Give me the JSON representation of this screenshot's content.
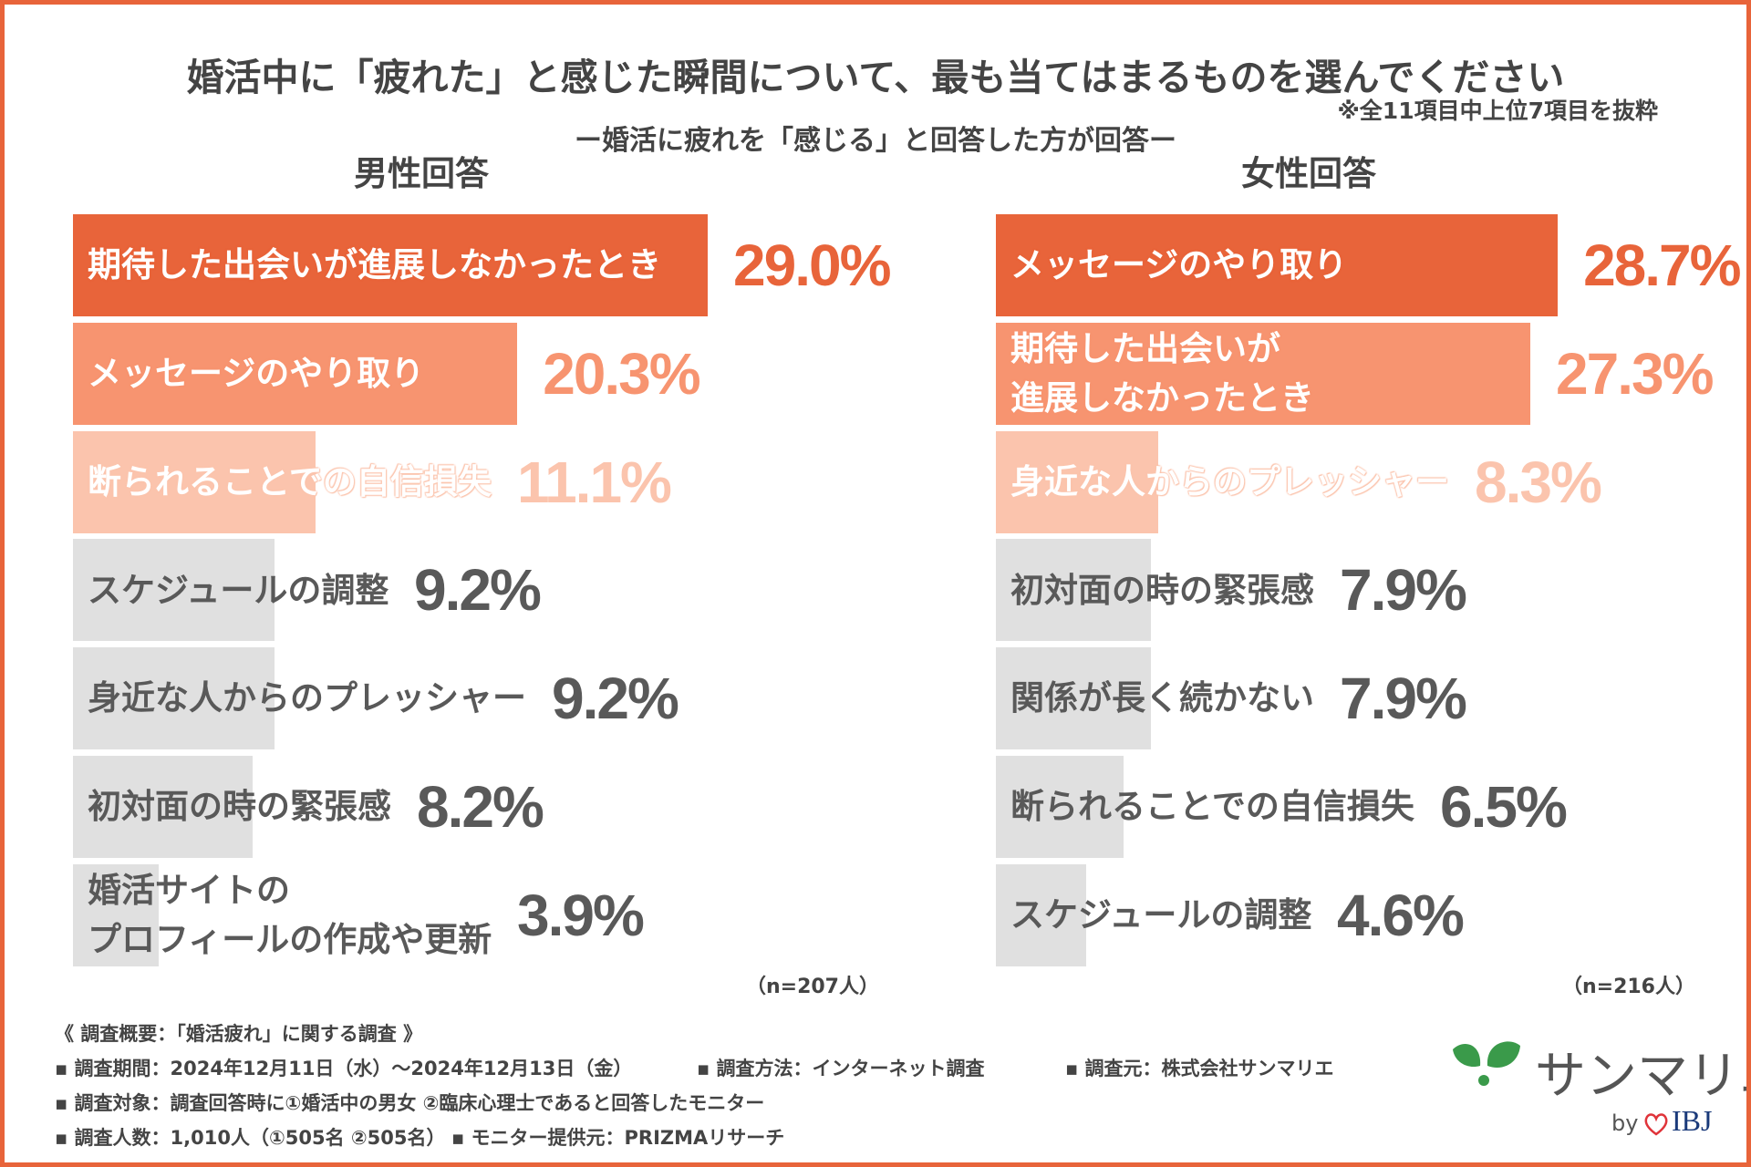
{
  "title": "婚活中に「疲れた」と感じた瞬間について、最も当てはまるものを選んでください",
  "note": "※全11項目中上位7項目を抜粋",
  "subtitle": "ー婚活に疲れを「感じる」と回答した方が回答ー",
  "chart_data": [
    {
      "type": "bar",
      "title": "男性回答",
      "categories": [
        "期待した出会いが進展しなかったとき",
        "メッセージのやり取り",
        "断られることでの自信損失",
        "スケジュールの調整",
        "身近な人からのプレッシャー",
        "初対面の時の緊張感",
        "婚活サイトの\nプロフィールの作成や更新"
      ],
      "values": [
        29.0,
        20.3,
        11.1,
        9.2,
        9.2,
        8.2,
        3.9
      ],
      "value_labels": [
        "29.0%",
        "20.3%",
        "11.1%",
        "9.2%",
        "9.2%",
        "8.2%",
        "3.9%"
      ],
      "colors": [
        "#e8643a",
        "#f79470",
        "#fbc4ad",
        "#e0e0e0",
        "#e0e0e0",
        "#e0e0e0",
        "#e0e0e0"
      ],
      "label_colors": [
        "#ffffff",
        "#ffffff",
        "#ffffff",
        "#595959",
        "#595959",
        "#595959",
        "#595959"
      ],
      "value_label_colors": [
        "#e8643a",
        "#f79470",
        "#fbc4ad",
        "#595959",
        "#595959",
        "#595959",
        "#595959"
      ],
      "xlim": [
        0,
        30
      ],
      "sample": "（n=207人）"
    },
    {
      "type": "bar",
      "title": "女性回答",
      "categories": [
        "メッセージのやり取り",
        "期待した出会いが\n進展しなかったとき",
        "身近な人からのプレッシャー",
        "初対面の時の緊張感",
        "関係が長く続かない",
        "断られることでの自信損失",
        "スケジュールの調整"
      ],
      "values": [
        28.7,
        27.3,
        8.3,
        7.9,
        7.9,
        6.5,
        4.6
      ],
      "value_labels": [
        "28.7%",
        "27.3%",
        "8.3%",
        "7.9%",
        "7.9%",
        "6.5%",
        "4.6%"
      ],
      "colors": [
        "#e8643a",
        "#f79470",
        "#fbc4ad",
        "#e0e0e0",
        "#e0e0e0",
        "#e0e0e0",
        "#e0e0e0"
      ],
      "label_colors": [
        "#ffffff",
        "#ffffff",
        "#ffffff",
        "#595959",
        "#595959",
        "#595959",
        "#595959"
      ],
      "value_label_colors": [
        "#e8643a",
        "#f79470",
        "#fbc4ad",
        "#595959",
        "#595959",
        "#595959",
        "#595959"
      ],
      "xlim": [
        0,
        30
      ],
      "sample": "（n=216人）"
    }
  ],
  "footer": {
    "heading": "《 調査概要：「婚活疲れ」に関する調査 》",
    "lines": [
      [
        "▪ 調査期間：2024年12月11日（水）〜2024年12月13日（金）",
        "▪ 調査方法：インターネット調査",
        "▪ 調査元：株式会社サンマリエ"
      ],
      [
        "▪ 調査対象：調査回答時に①婚活中の男女 ②臨床心理士であると回答したモニター"
      ],
      [
        "▪ 調査人数：1,010人（①505名 ②505名）",
        "▪ モニター提供元：PRIZMAリサーチ"
      ]
    ]
  },
  "logo": {
    "name": "サンマリエ",
    "by": "by",
    "brand": "IBJ"
  }
}
